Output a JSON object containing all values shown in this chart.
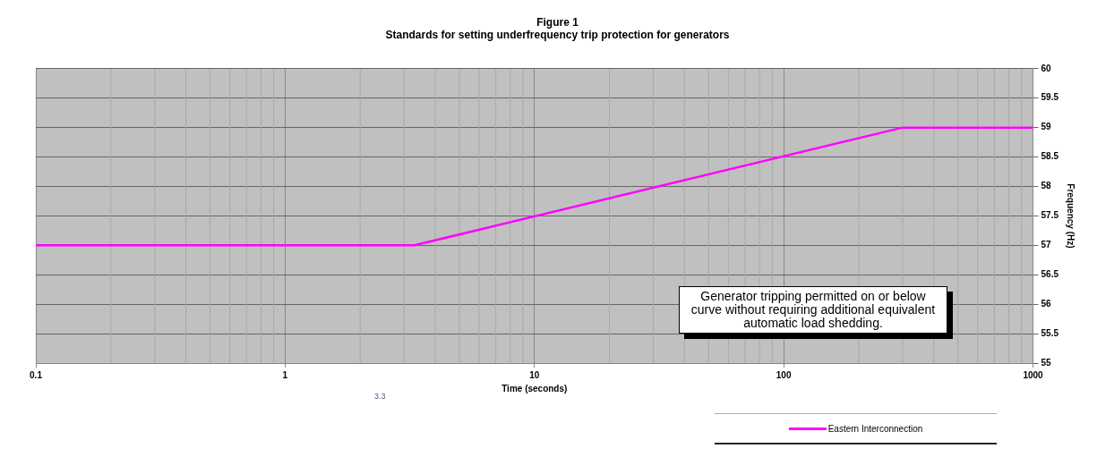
{
  "chart_data": {
    "type": "line",
    "title": "Figure 1",
    "subtitle": "Standards for setting underfrequency trip protection for generators",
    "xlabel": "Time (seconds)",
    "ylabel": "Frequency (Hz)",
    "x": [
      0.1,
      3.3,
      300,
      1000
    ],
    "series": [
      {
        "name": "Eastern Interconnection",
        "color": "#ff00ff",
        "values": [
          57,
          57,
          59,
          59
        ]
      }
    ],
    "log": "x",
    "xlim": [
      0.1,
      1000
    ],
    "xticks": [
      0.1,
      1,
      10,
      100,
      1000
    ],
    "ylim": [
      55,
      60
    ],
    "yticks": [
      55,
      55.5,
      56,
      56.5,
      57,
      57.5,
      58,
      58.5,
      59,
      59.5,
      60
    ],
    "grid": true,
    "legend": "bottom",
    "marker": "none",
    "line_style": "solid",
    "annotations": [
      "3.3",
      "Generator tripping permitted on or below curve without requiring additional equivalent automatic load shedding."
    ]
  }
}
